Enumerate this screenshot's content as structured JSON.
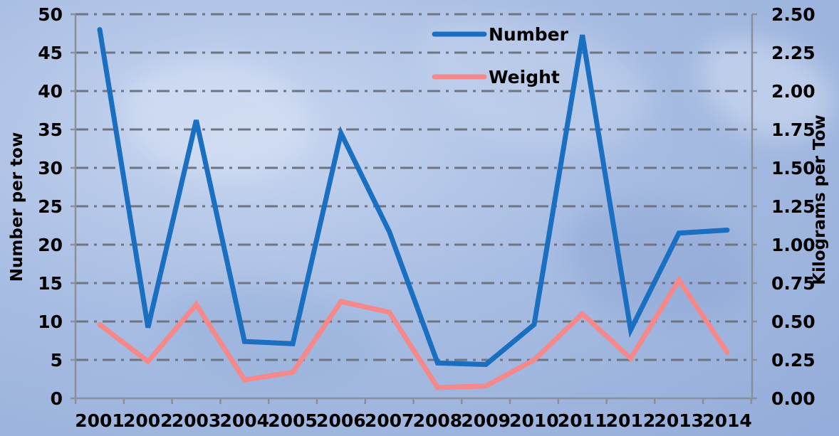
{
  "chart_data": {
    "type": "line",
    "title": "",
    "xlabel": "",
    "ylabel_left": "Number per tow",
    "ylabel_right": "Kilograms per Tow",
    "x": [
      "2001",
      "2002",
      "2003",
      "2004",
      "2005",
      "2006",
      "2007",
      "2008",
      "2009",
      "2010",
      "2011",
      "2012",
      "2013",
      "2014"
    ],
    "y_left_range": [
      0,
      50
    ],
    "y_left_ticks": [
      "0",
      "5",
      "10",
      "15",
      "20",
      "25",
      "30",
      "35",
      "40",
      "45",
      "50"
    ],
    "y_right_range": [
      0,
      2.5
    ],
    "y_right_ticks": [
      "0.00",
      "0.25",
      "0.50",
      "0.75",
      "1.00",
      "1.25",
      "1.50",
      "1.75",
      "2.00",
      "2.25",
      "2.50"
    ],
    "grid": true,
    "legend_position": "top-center",
    "series": [
      {
        "name": "Number",
        "axis": "left",
        "color": "#1a6fc0",
        "values": [
          48,
          9.2,
          36.2,
          7.4,
          7.1,
          34.5,
          21.7,
          4.6,
          4.4,
          9.6,
          47.3,
          8.9,
          21.5,
          21.9
        ]
      },
      {
        "name": "Weight",
        "axis": "right",
        "color": "#f4888a",
        "values": [
          0.48,
          0.24,
          0.61,
          0.12,
          0.17,
          0.63,
          0.56,
          0.07,
          0.08,
          0.25,
          0.55,
          0.26,
          0.77,
          0.3
        ]
      }
    ]
  }
}
